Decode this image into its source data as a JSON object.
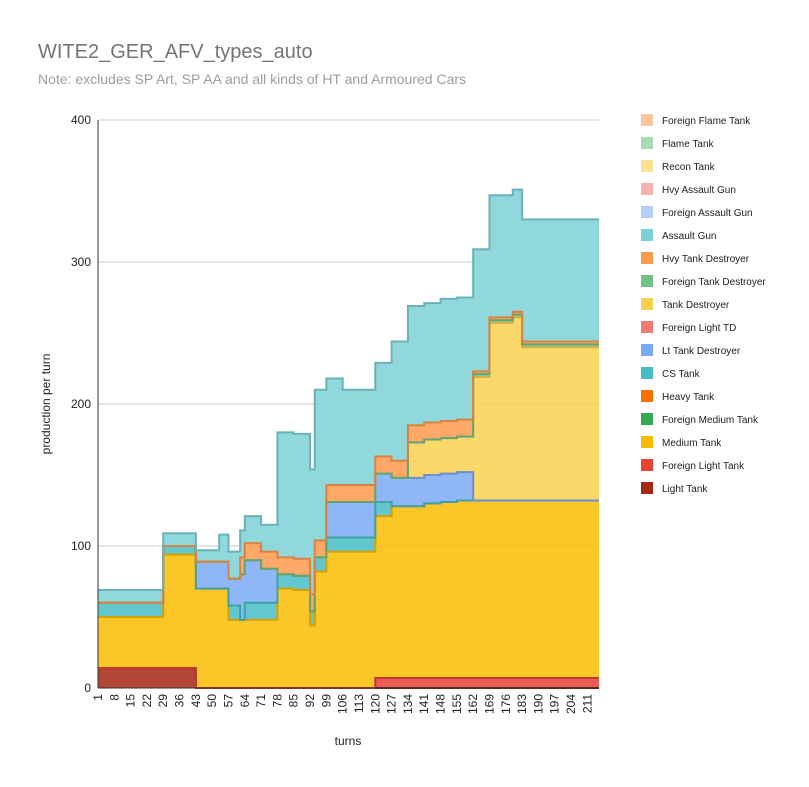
{
  "chart_data": {
    "type": "area",
    "stacked": true,
    "step": true,
    "title": "WITE2_GER_AFV_types_auto",
    "subtitle": "Note: excludes SP Art, SP AA and all kinds of HT and Armoured Cars",
    "xlabel": "turns",
    "ylabel": "production per turn",
    "ylim": [
      0,
      400
    ],
    "yticks": [
      0,
      100,
      200,
      300,
      400
    ],
    "x_ticks": [
      1,
      8,
      15,
      22,
      29,
      36,
      43,
      50,
      57,
      64,
      71,
      78,
      85,
      92,
      99,
      106,
      113,
      120,
      127,
      134,
      141,
      148,
      155,
      162,
      169,
      176,
      183,
      190,
      197,
      204,
      211
    ],
    "grid": true,
    "legend_position": "right",
    "x": [
      1,
      29,
      36,
      43,
      50,
      53,
      57,
      62,
      64,
      71,
      76,
      78,
      85,
      89,
      92,
      94,
      96,
      99,
      106,
      113,
      120,
      127,
      134,
      141,
      148,
      155,
      162,
      169,
      176,
      179,
      183,
      190,
      197,
      204,
      211,
      216
    ],
    "series": [
      {
        "name": "Light Tank",
        "color": "#a52714",
        "values": [
          14,
          14,
          14,
          0,
          0,
          0,
          0,
          0,
          0,
          0,
          0,
          0,
          0,
          0,
          0,
          0,
          0,
          0,
          0,
          0,
          0,
          0,
          0,
          0,
          0,
          0,
          0,
          0,
          0,
          0,
          0,
          0,
          0,
          0,
          0,
          0
        ]
      },
      {
        "name": "Foreign Light Tank",
        "color": "#e84235",
        "values": [
          0,
          0,
          0,
          0,
          0,
          0,
          0,
          0,
          0,
          0,
          0,
          0,
          0,
          0,
          0,
          0,
          0,
          0,
          0,
          0,
          7,
          7,
          7,
          7,
          7,
          7,
          7,
          7,
          7,
          7,
          7,
          7,
          7,
          7,
          7,
          7
        ]
      },
      {
        "name": "Medium Tank",
        "color": "#f9bc02",
        "values": [
          36,
          80,
          80,
          70,
          70,
          70,
          48,
          48,
          48,
          48,
          48,
          70,
          69,
          69,
          44,
          82,
          82,
          96,
          96,
          96,
          114,
          121,
          121,
          123,
          124,
          125,
          125,
          125,
          125,
          125,
          125,
          125,
          125,
          125,
          125,
          125
        ]
      },
      {
        "name": "Foreign Medium Tank",
        "color": "#34a853",
        "values": [
          0,
          0,
          0,
          0,
          0,
          0,
          0,
          0,
          0,
          0,
          0,
          0,
          0,
          0,
          0,
          0,
          0,
          0,
          0,
          0,
          0,
          0,
          0,
          0,
          0,
          0,
          0,
          0,
          0,
          0,
          0,
          0,
          0,
          0,
          0,
          0
        ]
      },
      {
        "name": "Heavy Tank",
        "color": "#ff6d01",
        "values": [
          0,
          0,
          0,
          0,
          0,
          0,
          0,
          0,
          0,
          0,
          0,
          0,
          0,
          0,
          0,
          0,
          0,
          0,
          0,
          0,
          0,
          0,
          0,
          0,
          0,
          0,
          0,
          0,
          0,
          0,
          0,
          0,
          0,
          0,
          0,
          0
        ]
      },
      {
        "name": "CS Tank",
        "color": "#46bdc6",
        "values": [
          10,
          6,
          6,
          0,
          0,
          0,
          10,
          0,
          12,
          12,
          12,
          10,
          10,
          10,
          10,
          10,
          10,
          10,
          10,
          10,
          10,
          0,
          0,
          0,
          0,
          0,
          0,
          0,
          0,
          0,
          0,
          0,
          0,
          0,
          0,
          0
        ]
      },
      {
        "name": "Lt Tank Destroyer",
        "color": "#7baaf7",
        "values": [
          0,
          0,
          0,
          19,
          19,
          19,
          19,
          32,
          30,
          24,
          24,
          0,
          0,
          0,
          0,
          0,
          0,
          25,
          25,
          25,
          20,
          20,
          20,
          20,
          20,
          20,
          0,
          0,
          0,
          0,
          0,
          0,
          0,
          0,
          0,
          0
        ]
      },
      {
        "name": "Foreign Light TD",
        "color": "#f07b72",
        "values": [
          0,
          0,
          0,
          0,
          0,
          0,
          0,
          0,
          0,
          0,
          0,
          0,
          0,
          0,
          0,
          0,
          0,
          0,
          0,
          0,
          0,
          0,
          0,
          0,
          0,
          0,
          0,
          0,
          0,
          0,
          0,
          0,
          0,
          0,
          0,
          0
        ]
      },
      {
        "name": "Tank Destroyer",
        "color": "#fcd04f",
        "values": [
          0,
          0,
          0,
          0,
          0,
          0,
          0,
          0,
          0,
          0,
          0,
          0,
          0,
          0,
          0,
          0,
          0,
          0,
          0,
          0,
          0,
          0,
          25,
          25,
          25,
          25,
          87,
          125,
          125,
          129,
          108,
          108,
          108,
          108,
          108,
          108
        ]
      },
      {
        "name": "Foreign Tank Destroyer",
        "color": "#71c287",
        "values": [
          0,
          0,
          0,
          0,
          0,
          0,
          0,
          0,
          0,
          0,
          0,
          0,
          0,
          0,
          0,
          0,
          0,
          0,
          0,
          0,
          0,
          0,
          0,
          0,
          0,
          0,
          2,
          2,
          2,
          2,
          2,
          2,
          2,
          2,
          2,
          2
        ]
      },
      {
        "name": "Hvy Tank Destroyer",
        "color": "#ff994d",
        "values": [
          0,
          0,
          0,
          0,
          0,
          0,
          0,
          12,
          12,
          12,
          12,
          12,
          12,
          12,
          12,
          12,
          12,
          12,
          12,
          12,
          12,
          12,
          12,
          12,
          12,
          12,
          2,
          2,
          2,
          2,
          2,
          2,
          2,
          2,
          2,
          2
        ]
      },
      {
        "name": "Assault Gun",
        "color": "#7ed1d7",
        "values": [
          9,
          9,
          9,
          8,
          8,
          19,
          19,
          19,
          19,
          19,
          19,
          88,
          88,
          88,
          88,
          106,
          106,
          75,
          67,
          67,
          66,
          84,
          84,
          84,
          86,
          86,
          86,
          86,
          86,
          86,
          86,
          86,
          86,
          86,
          86,
          86
        ]
      },
      {
        "name": "Foreign Assault Gun",
        "color": "#b3cefb",
        "values": [
          0,
          0,
          0,
          0,
          0,
          0,
          0,
          0,
          0,
          0,
          0,
          0,
          0,
          0,
          0,
          0,
          0,
          0,
          0,
          0,
          0,
          0,
          0,
          0,
          0,
          0,
          0,
          0,
          0,
          0,
          0,
          0,
          0,
          0,
          0,
          0
        ]
      },
      {
        "name": "Hvy Assault Gun",
        "color": "#f7b4ae",
        "values": [
          0,
          0,
          0,
          0,
          0,
          0,
          0,
          0,
          0,
          0,
          0,
          0,
          0,
          0,
          0,
          0,
          0,
          0,
          0,
          0,
          0,
          0,
          0,
          0,
          0,
          0,
          0,
          0,
          0,
          0,
          0,
          0,
          0,
          0,
          0,
          0
        ]
      },
      {
        "name": "Recon Tank",
        "color": "#fde293",
        "values": [
          0,
          0,
          0,
          0,
          0,
          0,
          0,
          0,
          0,
          0,
          0,
          0,
          0,
          0,
          0,
          0,
          0,
          0,
          0,
          0,
          0,
          0,
          0,
          0,
          0,
          0,
          0,
          0,
          0,
          0,
          0,
          0,
          0,
          0,
          0,
          0
        ]
      },
      {
        "name": "Flame Tank",
        "color": "#a8dab5",
        "values": [
          0,
          0,
          0,
          0,
          0,
          0,
          0,
          0,
          0,
          0,
          0,
          0,
          0,
          0,
          0,
          0,
          0,
          0,
          0,
          0,
          0,
          0,
          0,
          0,
          0,
          0,
          0,
          0,
          0,
          0,
          0,
          0,
          0,
          0,
          0,
          0
        ]
      },
      {
        "name": "Foreign Flame Tank",
        "color": "#fdc69c",
        "values": [
          0,
          0,
          0,
          0,
          0,
          0,
          0,
          0,
          0,
          0,
          0,
          0,
          0,
          0,
          0,
          0,
          0,
          0,
          0,
          0,
          0,
          0,
          0,
          0,
          0,
          0,
          0,
          0,
          0,
          0,
          0,
          0,
          0,
          0,
          0,
          0
        ]
      }
    ]
  }
}
